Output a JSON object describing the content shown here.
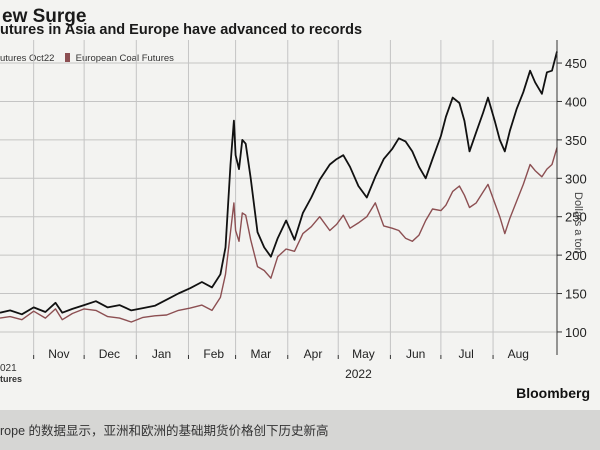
{
  "header": {
    "title": "ew Surge",
    "subtitle": "utures in Asia and Europe have advanced to records"
  },
  "footer": {
    "brand": "Bloomberg",
    "caption": "rope 的数据显示，亚洲和欧洲的基础期货价格创下历史新高",
    "year_left": "021",
    "year_center": "2022",
    "left_label": "tures"
  },
  "axis_title": "Dollars a ton",
  "colors": {
    "asia": "#111111",
    "europe": "#8c4f52",
    "grid": "#c4c4c4"
  },
  "chart_data": {
    "type": "line",
    "title": "ew Surge",
    "subtitle": "utures in Asia and Europe have advanced to records",
    "xlabel": "",
    "ylabel": "Dollars a ton",
    "x_type": "date",
    "x_tick_labels": [
      {
        "date": "2021-11-01",
        "label": "Nov"
      },
      {
        "date": "2021-12-01",
        "label": "Dec"
      },
      {
        "date": "2022-01-01",
        "label": "Jan"
      },
      {
        "date": "2022-02-01",
        "label": "Feb"
      },
      {
        "date": "2022-03-01",
        "label": "Mar"
      },
      {
        "date": "2022-04-01",
        "label": "Apr"
      },
      {
        "date": "2022-05-01",
        "label": "May"
      },
      {
        "date": "2022-06-01",
        "label": "Jun"
      },
      {
        "date": "2022-07-01",
        "label": "Jul"
      },
      {
        "date": "2022-08-01",
        "label": "Aug"
      }
    ],
    "x_range": [
      "2021-10-12",
      "2022-09-08"
    ],
    "ylim": [
      70,
      480
    ],
    "y_ticks": [
      100,
      150,
      200,
      250,
      300,
      350,
      400,
      450
    ],
    "y_axis_side": "right",
    "grid": true,
    "legend_position": "top-left",
    "series": [
      {
        "name": "utures Oct22",
        "color": "#111111",
        "points": [
          [
            "2021-10-12",
            125
          ],
          [
            "2021-10-18",
            128
          ],
          [
            "2021-10-25",
            123
          ],
          [
            "2021-11-01",
            132
          ],
          [
            "2021-11-08",
            126
          ],
          [
            "2021-11-14",
            138
          ],
          [
            "2021-11-18",
            125
          ],
          [
            "2021-11-24",
            130
          ],
          [
            "2021-12-01",
            135
          ],
          [
            "2021-12-08",
            140
          ],
          [
            "2021-12-15",
            132
          ],
          [
            "2021-12-22",
            135
          ],
          [
            "2021-12-29",
            128
          ],
          [
            "2022-01-05",
            131
          ],
          [
            "2022-01-12",
            134
          ],
          [
            "2022-01-19",
            142
          ],
          [
            "2022-01-26",
            150
          ],
          [
            "2022-02-02",
            157
          ],
          [
            "2022-02-09",
            165
          ],
          [
            "2022-02-15",
            158
          ],
          [
            "2022-02-20",
            175
          ],
          [
            "2022-02-23",
            210
          ],
          [
            "2022-02-26",
            318
          ],
          [
            "2022-02-28",
            375
          ],
          [
            "2022-03-01",
            330
          ],
          [
            "2022-03-03",
            312
          ],
          [
            "2022-03-05",
            350
          ],
          [
            "2022-03-07",
            345
          ],
          [
            "2022-03-10",
            300
          ],
          [
            "2022-03-14",
            230
          ],
          [
            "2022-03-18",
            210
          ],
          [
            "2022-03-22",
            198
          ],
          [
            "2022-03-26",
            222
          ],
          [
            "2022-03-31",
            245
          ],
          [
            "2022-04-05",
            220
          ],
          [
            "2022-04-10",
            255
          ],
          [
            "2022-04-15",
            275
          ],
          [
            "2022-04-20",
            298
          ],
          [
            "2022-04-26",
            318
          ],
          [
            "2022-04-30",
            325
          ],
          [
            "2022-05-04",
            330
          ],
          [
            "2022-05-08",
            315
          ],
          [
            "2022-05-13",
            290
          ],
          [
            "2022-05-18",
            275
          ],
          [
            "2022-05-23",
            302
          ],
          [
            "2022-05-28",
            325
          ],
          [
            "2022-06-02",
            338
          ],
          [
            "2022-06-06",
            352
          ],
          [
            "2022-06-10",
            348
          ],
          [
            "2022-06-14",
            335
          ],
          [
            "2022-06-18",
            315
          ],
          [
            "2022-06-22",
            300
          ],
          [
            "2022-06-26",
            325
          ],
          [
            "2022-07-01",
            355
          ],
          [
            "2022-07-04",
            380
          ],
          [
            "2022-07-08",
            405
          ],
          [
            "2022-07-12",
            398
          ],
          [
            "2022-07-15",
            375
          ],
          [
            "2022-07-18",
            335
          ],
          [
            "2022-07-22",
            360
          ],
          [
            "2022-07-26",
            385
          ],
          [
            "2022-07-29",
            405
          ],
          [
            "2022-08-02",
            375
          ],
          [
            "2022-08-05",
            350
          ],
          [
            "2022-08-08",
            335
          ],
          [
            "2022-08-11",
            362
          ],
          [
            "2022-08-15",
            390
          ],
          [
            "2022-08-19",
            412
          ],
          [
            "2022-08-23",
            440
          ],
          [
            "2022-08-26",
            425
          ],
          [
            "2022-08-30",
            410
          ],
          [
            "2022-09-02",
            438
          ],
          [
            "2022-09-05",
            440
          ],
          [
            "2022-09-08",
            465
          ]
        ]
      },
      {
        "name": "European Coal Futures",
        "color": "#8c4f52",
        "points": [
          [
            "2021-10-12",
            118
          ],
          [
            "2021-10-18",
            120
          ],
          [
            "2021-10-25",
            116
          ],
          [
            "2021-11-01",
            127
          ],
          [
            "2021-11-08",
            118
          ],
          [
            "2021-11-14",
            130
          ],
          [
            "2021-11-18",
            116
          ],
          [
            "2021-11-24",
            124
          ],
          [
            "2021-12-01",
            130
          ],
          [
            "2021-12-08",
            128
          ],
          [
            "2021-12-15",
            120
          ],
          [
            "2021-12-22",
            118
          ],
          [
            "2021-12-29",
            113
          ],
          [
            "2022-01-05",
            119
          ],
          [
            "2022-01-12",
            121
          ],
          [
            "2022-01-19",
            122
          ],
          [
            "2022-01-26",
            128
          ],
          [
            "2022-02-02",
            131
          ],
          [
            "2022-02-09",
            135
          ],
          [
            "2022-02-15",
            128
          ],
          [
            "2022-02-20",
            145
          ],
          [
            "2022-02-23",
            175
          ],
          [
            "2022-02-26",
            230
          ],
          [
            "2022-02-28",
            268
          ],
          [
            "2022-03-01",
            232
          ],
          [
            "2022-03-03",
            218
          ],
          [
            "2022-03-05",
            255
          ],
          [
            "2022-03-07",
            252
          ],
          [
            "2022-03-10",
            220
          ],
          [
            "2022-03-14",
            185
          ],
          [
            "2022-03-18",
            180
          ],
          [
            "2022-03-22",
            170
          ],
          [
            "2022-03-26",
            198
          ],
          [
            "2022-03-31",
            208
          ],
          [
            "2022-04-05",
            205
          ],
          [
            "2022-04-10",
            228
          ],
          [
            "2022-04-15",
            237
          ],
          [
            "2022-04-20",
            250
          ],
          [
            "2022-04-26",
            232
          ],
          [
            "2022-04-30",
            240
          ],
          [
            "2022-05-04",
            252
          ],
          [
            "2022-05-08",
            235
          ],
          [
            "2022-05-13",
            242
          ],
          [
            "2022-05-18",
            250
          ],
          [
            "2022-05-23",
            268
          ],
          [
            "2022-05-28",
            238
          ],
          [
            "2022-06-02",
            235
          ],
          [
            "2022-06-06",
            232
          ],
          [
            "2022-06-10",
            222
          ],
          [
            "2022-06-14",
            218
          ],
          [
            "2022-06-18",
            226
          ],
          [
            "2022-06-22",
            245
          ],
          [
            "2022-06-26",
            260
          ],
          [
            "2022-07-01",
            258
          ],
          [
            "2022-07-04",
            265
          ],
          [
            "2022-07-08",
            283
          ],
          [
            "2022-07-12",
            290
          ],
          [
            "2022-07-15",
            278
          ],
          [
            "2022-07-18",
            262
          ],
          [
            "2022-07-22",
            268
          ],
          [
            "2022-07-26",
            282
          ],
          [
            "2022-07-29",
            292
          ],
          [
            "2022-08-02",
            268
          ],
          [
            "2022-08-05",
            250
          ],
          [
            "2022-08-08",
            228
          ],
          [
            "2022-08-11",
            248
          ],
          [
            "2022-08-15",
            270
          ],
          [
            "2022-08-19",
            292
          ],
          [
            "2022-08-23",
            318
          ],
          [
            "2022-08-26",
            310
          ],
          [
            "2022-08-30",
            302
          ],
          [
            "2022-09-02",
            312
          ],
          [
            "2022-09-05",
            318
          ],
          [
            "2022-09-08",
            340
          ]
        ]
      }
    ]
  }
}
